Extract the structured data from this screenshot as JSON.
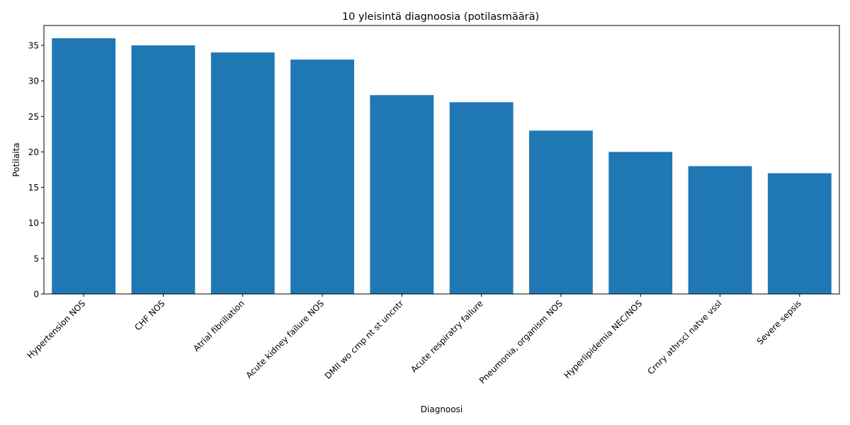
{
  "chart_data": {
    "type": "bar",
    "title": "10 yleisintä diagnoosia (potilasmäärä)",
    "xlabel": "Diagnoosi",
    "ylabel": "Potilaita",
    "categories": [
      "Hypertension NOS",
      "CHF NOS",
      "Atrial fibrillation",
      "Acute kidney failure NOS",
      "DMII wo cmp nt st uncntr",
      "Acute respiratry failure",
      "Pneumonia, organism NOS",
      "Hyperlipidemia NEC/NOS",
      "Crnry athrscl natve vssl",
      "Severe sepsis"
    ],
    "values": [
      36,
      35,
      34,
      33,
      28,
      27,
      23,
      20,
      18,
      17
    ],
    "ylim": [
      0,
      37.8
    ],
    "yticks": [
      0,
      5,
      10,
      15,
      20,
      25,
      30,
      35
    ],
    "bar_color": "#1f77b4",
    "grid": false,
    "legend": "none"
  }
}
